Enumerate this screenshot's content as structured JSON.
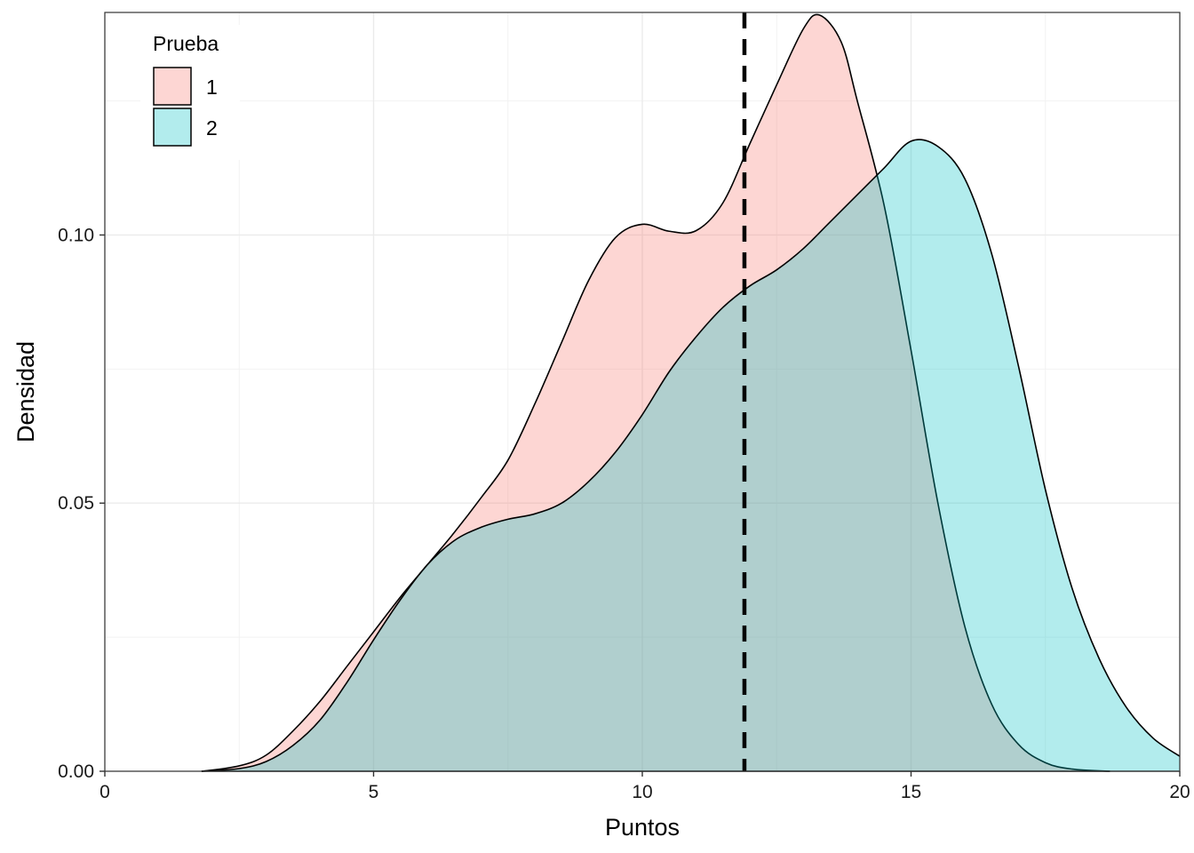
{
  "chart_data": {
    "type": "area",
    "xlabel": "Puntos",
    "ylabel": "Densidad",
    "xlim": [
      0,
      20
    ],
    "ylim": [
      0,
      0.1415
    ],
    "x_ticks": [
      0,
      5,
      10,
      15,
      20
    ],
    "x_tick_labels": [
      "0",
      "5",
      "10",
      "15",
      "20"
    ],
    "y_ticks": [
      0,
      0.05,
      0.1
    ],
    "y_tick_labels": [
      "0.00",
      "0.05",
      "0.10"
    ],
    "grid": true,
    "legend": {
      "title": "Prueba",
      "position": "top-left",
      "items": [
        {
          "label": "1",
          "color": "#F8766D"
        },
        {
          "label": "2",
          "color": "#00BFC4"
        }
      ]
    },
    "vline": {
      "x": 11.9,
      "style": "dashed",
      "color": "#000000"
    },
    "series": [
      {
        "name": "1",
        "fill": "#F8766D",
        "fill_opacity": 0.3,
        "points": [
          [
            1.8,
            0
          ],
          [
            2.5,
            0.001
          ],
          [
            3,
            0.003
          ],
          [
            3.5,
            0.0075
          ],
          [
            4,
            0.013
          ],
          [
            4.5,
            0.0195
          ],
          [
            5,
            0.026
          ],
          [
            5.5,
            0.0325
          ],
          [
            6,
            0.0385
          ],
          [
            6.5,
            0.0445
          ],
          [
            7,
            0.051
          ],
          [
            7.5,
            0.058
          ],
          [
            8,
            0.0685
          ],
          [
            8.5,
            0.08
          ],
          [
            9,
            0.0915
          ],
          [
            9.5,
            0.0995
          ],
          [
            10,
            0.102
          ],
          [
            10.5,
            0.1007
          ],
          [
            11,
            0.1008
          ],
          [
            11.5,
            0.106
          ],
          [
            12,
            0.117
          ],
          [
            12.5,
            0.128
          ],
          [
            13,
            0.1385
          ],
          [
            13.3,
            0.141
          ],
          [
            13.7,
            0.136
          ],
          [
            14,
            0.125
          ],
          [
            14.5,
            0.1055
          ],
          [
            15,
            0.0785
          ],
          [
            15.5,
            0.05
          ],
          [
            16,
            0.027
          ],
          [
            16.5,
            0.0125
          ],
          [
            17,
            0.005
          ],
          [
            17.5,
            0.0016
          ],
          [
            18,
            0.0004
          ],
          [
            18.7,
            0
          ]
        ]
      },
      {
        "name": "2",
        "fill": "#00BFC4",
        "fill_opacity": 0.3,
        "points": [
          [
            1.8,
            0
          ],
          [
            2.5,
            0.0005
          ],
          [
            3,
            0.0018
          ],
          [
            3.5,
            0.0048
          ],
          [
            4,
            0.0095
          ],
          [
            4.5,
            0.0165
          ],
          [
            5,
            0.0245
          ],
          [
            5.5,
            0.032
          ],
          [
            6,
            0.0385
          ],
          [
            6.5,
            0.043
          ],
          [
            7,
            0.0455
          ],
          [
            7.5,
            0.047
          ],
          [
            8,
            0.048
          ],
          [
            8.5,
            0.05
          ],
          [
            9,
            0.054
          ],
          [
            9.5,
            0.0595
          ],
          [
            10,
            0.0665
          ],
          [
            10.5,
            0.0745
          ],
          [
            11,
            0.081
          ],
          [
            11.5,
            0.0865
          ],
          [
            12,
            0.0905
          ],
          [
            12.5,
            0.0935
          ],
          [
            13,
            0.0975
          ],
          [
            13.5,
            0.1025
          ],
          [
            14,
            0.1075
          ],
          [
            14.5,
            0.1125
          ],
          [
            15,
            0.1175
          ],
          [
            15.5,
            0.1165
          ],
          [
            16,
            0.1105
          ],
          [
            16.5,
            0.0965
          ],
          [
            17,
            0.0755
          ],
          [
            17.5,
            0.0525
          ],
          [
            18,
            0.034
          ],
          [
            18.5,
            0.021
          ],
          [
            19,
            0.012
          ],
          [
            19.5,
            0.0062
          ],
          [
            20,
            0.0028
          ]
        ]
      }
    ]
  }
}
